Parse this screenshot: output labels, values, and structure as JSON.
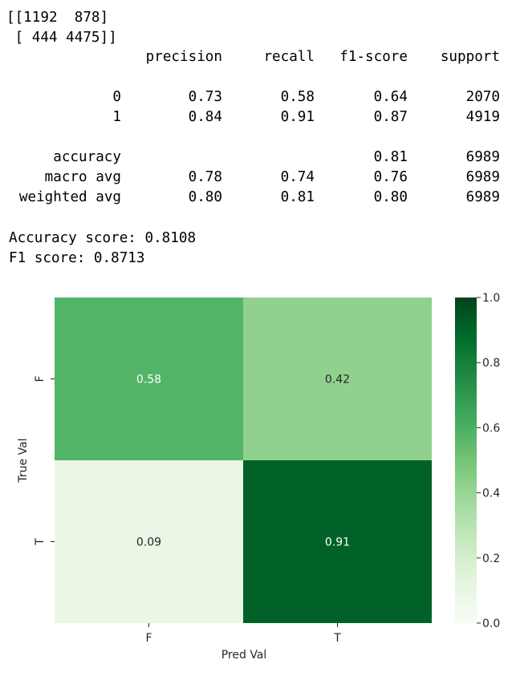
{
  "output": {
    "matrix_line1": "[[1192  878]",
    "matrix_line2": " [ 444 4475]]",
    "report": {
      "headers": [
        "precision",
        "recall",
        "f1-score",
        "support"
      ],
      "rows": [
        {
          "label": "0",
          "precision": "0.73",
          "recall": "0.58",
          "f1": "0.64",
          "support": "2070"
        },
        {
          "label": "1",
          "precision": "0.84",
          "recall": "0.91",
          "f1": "0.87",
          "support": "4919"
        },
        {
          "label": "accuracy",
          "precision": "",
          "recall": "",
          "f1": "0.81",
          "support": "6989"
        },
        {
          "label": "macro avg",
          "precision": "0.78",
          "recall": "0.74",
          "f1": "0.76",
          "support": "6989"
        },
        {
          "label": "weighted avg",
          "precision": "0.80",
          "recall": "0.81",
          "f1": "0.80",
          "support": "6989"
        }
      ]
    },
    "accuracy_line": "Accuracy score: 0.8108",
    "f1_line": "F1 score: 0.8713"
  },
  "chart_data": {
    "type": "heatmap",
    "xlabel": "Pred Val",
    "ylabel": "True Val",
    "x_categories": [
      "F",
      "T"
    ],
    "y_categories": [
      "F",
      "T"
    ],
    "values": [
      [
        0.58,
        0.42
      ],
      [
        0.09,
        0.91
      ]
    ],
    "cell_labels": [
      [
        "0.58",
        "0.42"
      ],
      [
        "0.09",
        "0.91"
      ]
    ],
    "colormap": "Greens",
    "colorbar": {
      "range": [
        0.0,
        1.0
      ],
      "ticks": [
        "0.0",
        "0.2",
        "0.4",
        "0.6",
        "0.8",
        "1.0"
      ]
    }
  }
}
